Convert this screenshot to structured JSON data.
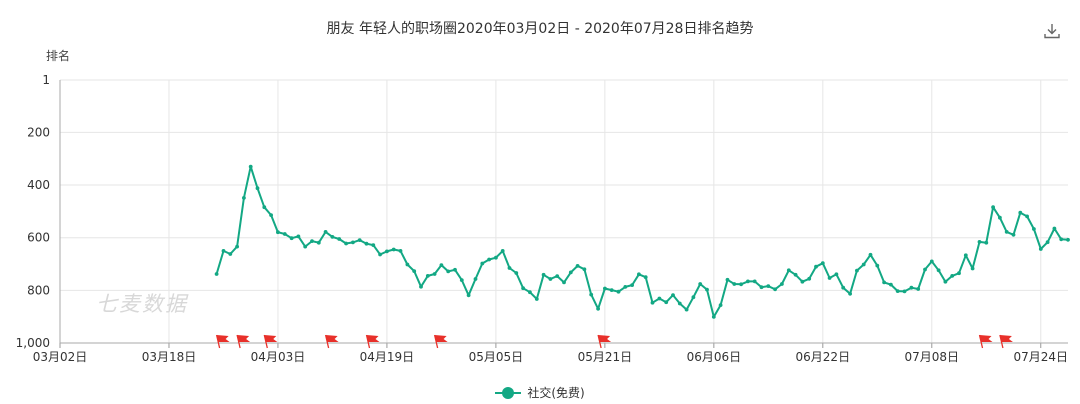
{
  "header": {
    "title": "朋友 年轻人的职场圈2020年03月02日 - 2020年07月28日排名趋势",
    "download_icon": "download-icon"
  },
  "watermark": "七麦数据",
  "colors": {
    "series": "#13a884",
    "grid": "#e6e6e6",
    "flag": "#e8302a"
  },
  "chart_data": {
    "type": "line",
    "title": "朋友 年轻人的职场圈2020年03月02日 - 2020年07月28日排名趋势",
    "ylabel": "排名",
    "xlabel": "",
    "y_inverted": true,
    "ylim": [
      1,
      1000
    ],
    "yticks": [
      1,
      200,
      400,
      600,
      800,
      1000
    ],
    "ytick_labels": [
      "1",
      "200",
      "400",
      "600",
      "800",
      "1,000"
    ],
    "xlim": [
      "2020-03-02",
      "2020-07-28"
    ],
    "xticks": [
      "03月02日",
      "03月18日",
      "04月03日",
      "04月19日",
      "05月05日",
      "05月21日",
      "06月06日",
      "06月22日",
      "07月08日",
      "07月24日"
    ],
    "grid": true,
    "legend_position": "bottom",
    "series": [
      {
        "name": "社交(免费)",
        "color": "#13a884",
        "start_date": "2020-03-25",
        "values": [
          738,
          650,
          662,
          634,
          449,
          330,
          412,
          484,
          514,
          579,
          586,
          602,
          595,
          634,
          613,
          619,
          578,
          597,
          605,
          622,
          618,
          609,
          623,
          628,
          664,
          652,
          645,
          650,
          702,
          727,
          786,
          745,
          738,
          704,
          728,
          722,
          761,
          819,
          757,
          698,
          683,
          676,
          650,
          715,
          734,
          792,
          807,
          833,
          741,
          757,
          746,
          770,
          732,
          707,
          720,
          816,
          870,
          793,
          799,
          805,
          787,
          780,
          739,
          750,
          847,
          831,
          845,
          818,
          850,
          873,
          826,
          776,
          797,
          901,
          856,
          760,
          776,
          777,
          766,
          766,
          788,
          784,
          796,
          776,
          724,
          741,
          767,
          756,
          710,
          697,
          753,
          739,
          790,
          813,
          725,
          702,
          665,
          706,
          770,
          778,
          803,
          804,
          790,
          795,
          721,
          690,
          724,
          767,
          745,
          735,
          667,
          717,
          616,
          619,
          484,
          524,
          578,
          589,
          505,
          519,
          567,
          643,
          617,
          565,
          606,
          608
        ]
      }
    ],
    "flag_markers": [
      "2020-03-25",
      "2020-03-28",
      "2020-04-01",
      "2020-04-10",
      "2020-04-16",
      "2020-04-26",
      "2020-05-20",
      "2020-07-15",
      "2020-07-18"
    ]
  }
}
